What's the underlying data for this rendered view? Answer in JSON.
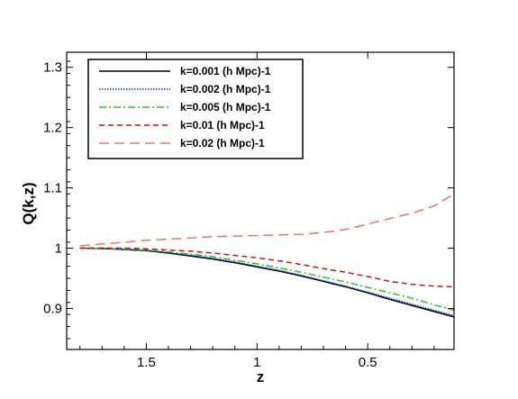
{
  "chart_data": {
    "type": "line",
    "xlabel": "z",
    "ylabel": "Q(k,z)",
    "xlim": [
      1.86,
      0.11
    ],
    "ylim": [
      0.832,
      1.325
    ],
    "x_reversed": true,
    "grid": false,
    "legend_position": "top-left",
    "x_ticks": [
      1.5,
      1,
      0.5
    ],
    "x_tick_labels": [
      "1.5",
      "1",
      "0.5"
    ],
    "y_ticks": [
      0.9,
      1,
      1.1,
      1.2,
      1.3
    ],
    "y_tick_labels": [
      "0.9",
      "1",
      "1.1",
      "1.2",
      "1.3"
    ],
    "series": [
      {
        "name": "k=0.001 (h Mpc)-1",
        "color": "#000000",
        "style": "solid",
        "x": [
          1.8,
          1.7,
          1.6,
          1.5,
          1.4,
          1.3,
          1.2,
          1.1,
          1.0,
          0.9,
          0.8,
          0.7,
          0.6,
          0.5,
          0.4,
          0.3,
          0.2,
          0.11
        ],
        "y": [
          1.0,
          0.9995,
          0.998,
          0.996,
          0.992,
          0.987,
          0.982,
          0.976,
          0.969,
          0.962,
          0.954,
          0.945,
          0.936,
          0.926,
          0.915,
          0.905,
          0.895,
          0.886
        ]
      },
      {
        "name": "k=0.002 (h Mpc)-1",
        "color": "#1f2fbf",
        "style": "dotted",
        "x": [
          1.8,
          1.7,
          1.6,
          1.5,
          1.4,
          1.3,
          1.2,
          1.1,
          1.0,
          0.9,
          0.8,
          0.7,
          0.6,
          0.5,
          0.4,
          0.3,
          0.2,
          0.11
        ],
        "y": [
          1.0,
          0.9995,
          0.998,
          0.996,
          0.992,
          0.988,
          0.983,
          0.977,
          0.97,
          0.963,
          0.955,
          0.946,
          0.937,
          0.927,
          0.917,
          0.907,
          0.897,
          0.888
        ]
      },
      {
        "name": "k=0.005 (h Mpc)-1",
        "color": "#22cc22",
        "style": "dashdot",
        "x": [
          1.8,
          1.7,
          1.6,
          1.5,
          1.4,
          1.3,
          1.2,
          1.1,
          1.0,
          0.9,
          0.8,
          0.7,
          0.6,
          0.5,
          0.4,
          0.3,
          0.2,
          0.11
        ],
        "y": [
          1.0,
          0.9998,
          0.9985,
          0.997,
          0.994,
          0.99,
          0.986,
          0.98,
          0.974,
          0.967,
          0.96,
          0.952,
          0.944,
          0.935,
          0.926,
          0.917,
          0.906,
          0.897
        ]
      },
      {
        "name": "k=0.01 (h Mpc)-1",
        "color": "#cc1111",
        "style": "dashed",
        "x": [
          1.8,
          1.7,
          1.6,
          1.5,
          1.4,
          1.3,
          1.2,
          1.1,
          1.0,
          0.9,
          0.8,
          0.7,
          0.6,
          0.5,
          0.4,
          0.3,
          0.2,
          0.11
        ],
        "y": [
          1.0,
          1.0002,
          1.0,
          0.999,
          0.997,
          0.995,
          0.992,
          0.988,
          0.984,
          0.979,
          0.973,
          0.966,
          0.96,
          0.953,
          0.945,
          0.94,
          0.937,
          0.936
        ]
      },
      {
        "name": "k=0.02 (h Mpc)-1",
        "color": "#f07070",
        "style": "longdash",
        "x": [
          1.8,
          1.7,
          1.6,
          1.5,
          1.4,
          1.3,
          1.2,
          1.1,
          1.0,
          0.9,
          0.8,
          0.7,
          0.6,
          0.5,
          0.4,
          0.3,
          0.2,
          0.11
        ],
        "y": [
          1.004,
          1.007,
          1.01,
          1.013,
          1.015,
          1.017,
          1.019,
          1.02,
          1.021,
          1.022,
          1.023,
          1.026,
          1.031,
          1.04,
          1.049,
          1.058,
          1.07,
          1.09
        ]
      }
    ]
  }
}
